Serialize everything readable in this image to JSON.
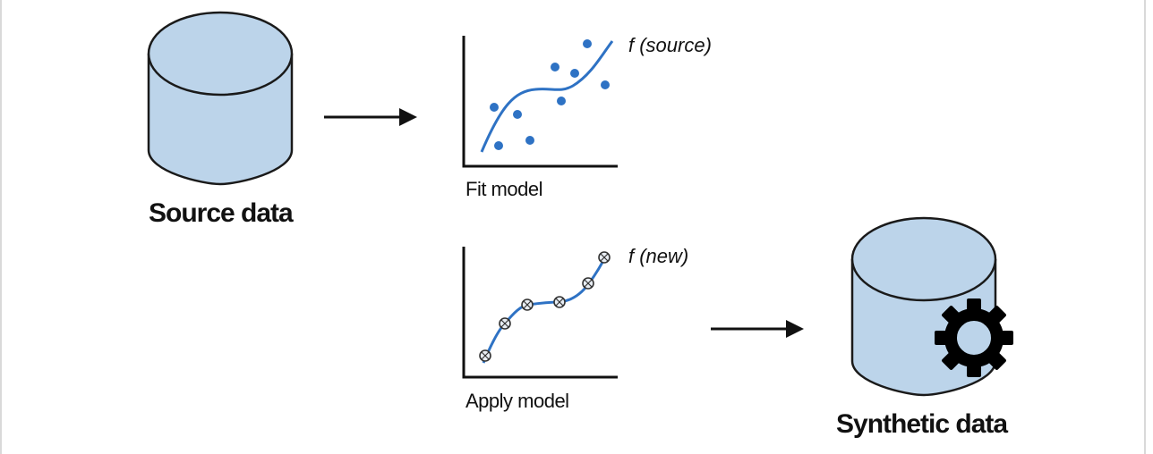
{
  "source": {
    "label": "Source data"
  },
  "fit": {
    "label": "Fit model",
    "function_label": "f (source)"
  },
  "apply": {
    "label": "Apply model",
    "function_label": "f (new)"
  },
  "synthetic": {
    "label": "Synthetic data"
  },
  "colors": {
    "cylinder_fill": "#bcd4ea",
    "curve": "#2e72c4",
    "point": "#2e72c4",
    "gear": "#000000",
    "stroke": "#1a1a1a"
  },
  "icons": [
    "database-icon",
    "gear-icon",
    "arrow-right-icon"
  ]
}
